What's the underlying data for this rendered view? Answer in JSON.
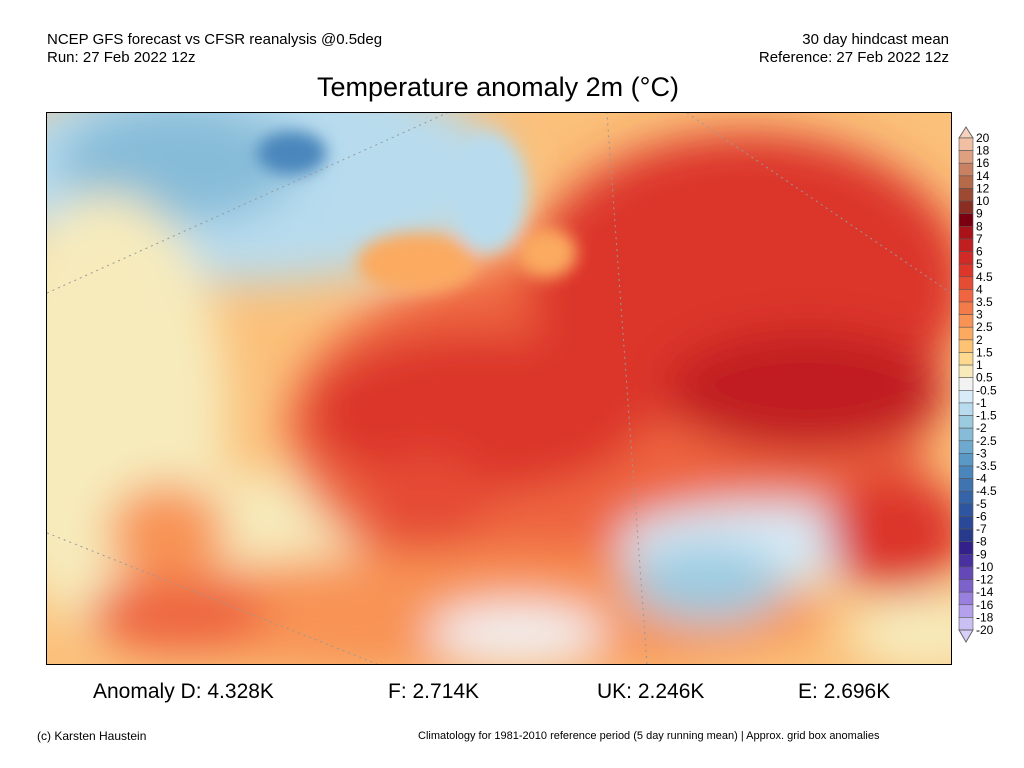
{
  "header": {
    "model_line": "NCEP GFS forecast vs CFSR reanalysis @0.5deg",
    "run_line": "Run: 27 Feb 2022 12z",
    "mean_line": "30 day hindcast mean",
    "reference_line": "Reference: 27 Feb 2022 12z"
  },
  "title": "Temperature anomaly 2m (°C)",
  "colorbar": {
    "labels": [
      "20",
      "18",
      "16",
      "14",
      "12",
      "10",
      "9",
      "8",
      "7",
      "6",
      "5",
      "4.5",
      "4",
      "3.5",
      "3",
      "2.5",
      "2",
      "1.5",
      "1",
      "0.5",
      "-0.5",
      "-1",
      "-1.5",
      "-2",
      "-2.5",
      "-3",
      "-3.5",
      "-4",
      "-4.5",
      "-5",
      "-6",
      "-7",
      "-8",
      "-9",
      "-10",
      "-12",
      "-14",
      "-16",
      "-18",
      "-20"
    ],
    "colors": [
      "#f0bfa4",
      "#dfa082",
      "#c98163",
      "#b56a4a",
      "#9c4a33",
      "#8a2d22",
      "#7a0010",
      "#a81218",
      "#c01f22",
      "#d22a26",
      "#dc362b",
      "#e54c34",
      "#ee6540",
      "#f37b4a",
      "#f89355",
      "#fbaa60",
      "#fdc373",
      "#fdd990",
      "#f7ebbc",
      "#f2f2f2",
      "#d8ecf8",
      "#b8dcee",
      "#9ccbe0",
      "#86bcd8",
      "#6eaad0",
      "#5a98c6",
      "#4a86bc",
      "#3f74b0",
      "#3664a8",
      "#2e56a0",
      "#2a4898",
      "#283a8c",
      "#34208a",
      "#48309e",
      "#6448b8",
      "#7e62cc",
      "#9a80de",
      "#b4a0ec",
      "#cac0f4"
    ],
    "top_arrow_color": "#f6d2bd",
    "bottom_arrow_color": "#d6d0fa"
  },
  "stats": {
    "germany": "Anomaly D: 4.328K",
    "france": "F: 2.714K",
    "uk": "UK: 2.246K",
    "spain": "E: 2.696K"
  },
  "footer": {
    "credit": "(c) Karsten Haustein",
    "note": "Climatology for 1981-2010 reference period (5 day running mean) | Approx. grid box anomalies"
  }
}
